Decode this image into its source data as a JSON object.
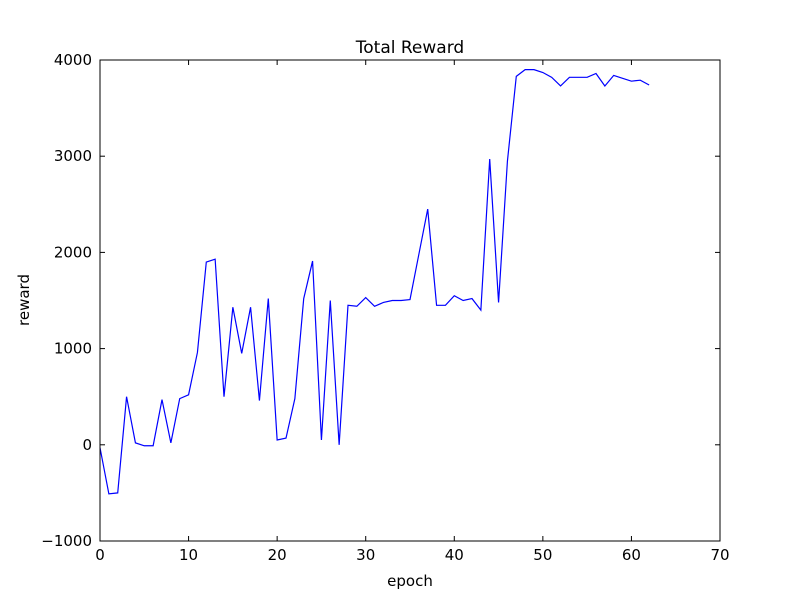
{
  "chart_data": {
    "type": "line",
    "title": "Total Reward",
    "xlabel": "epoch",
    "ylabel": "reward",
    "xlim": [
      0,
      70
    ],
    "ylim": [
      -1000,
      4000
    ],
    "xticks": [
      "0",
      "10",
      "20",
      "30",
      "40",
      "50",
      "60",
      "70"
    ],
    "yticks": [
      "−1000",
      "0",
      "1000",
      "2000",
      "3000",
      "4000"
    ],
    "grid": false,
    "line_color": "#0000ff",
    "series": [
      {
        "x": [
          0,
          1,
          2,
          3,
          4,
          5,
          6,
          7,
          8,
          9,
          10,
          11,
          12,
          13,
          14,
          15,
          16,
          17,
          18,
          19,
          20,
          21,
          22,
          23,
          24,
          25,
          26,
          27,
          28,
          29,
          30,
          31,
          32,
          33,
          34,
          35,
          36,
          37,
          38,
          39,
          40,
          41,
          42,
          43,
          44,
          45,
          46,
          47,
          48,
          49,
          50,
          51,
          52,
          53,
          54,
          55,
          56,
          57,
          58,
          59,
          60,
          61,
          62
        ],
        "y": [
          -30,
          -510,
          -500,
          500,
          20,
          -10,
          -10,
          470,
          20,
          480,
          520,
          960,
          1900,
          1930,
          500,
          1430,
          950,
          1430,
          460,
          1520,
          50,
          70,
          480,
          1520,
          1910,
          50,
          1500,
          0,
          1450,
          1440,
          1530,
          1440,
          1480,
          1500,
          1500,
          1510,
          1980,
          2450,
          1450,
          1450,
          1550,
          1500,
          1520,
          1400,
          2970,
          1480,
          2950,
          3830,
          3900,
          3900,
          3870,
          3820,
          3730,
          3820,
          3820,
          3820,
          3860,
          3730,
          3840,
          3810,
          3780,
          3790,
          3740
        ]
      }
    ]
  }
}
